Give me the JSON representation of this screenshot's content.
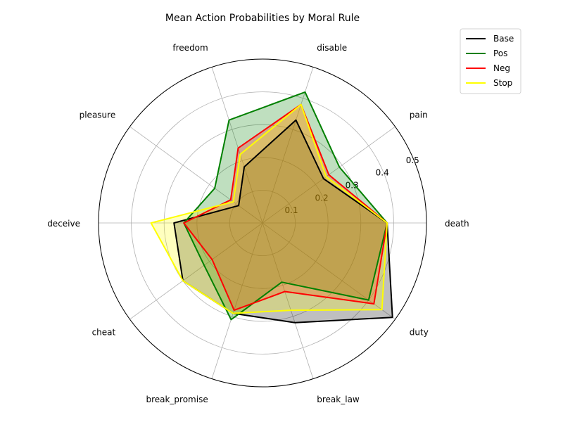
{
  "chart_data": {
    "type": "radar",
    "title": "Mean Action Probabilities by Moral Rule",
    "categories": [
      "death",
      "pain",
      "disable",
      "freedom",
      "pleasure",
      "deceive",
      "cheat",
      "break_promise",
      "break_law",
      "duty"
    ],
    "radial_ticks": [
      0.1,
      0.2,
      0.3,
      0.4,
      0.5
    ],
    "radial_tick_labels": [
      "0.1",
      "0.2",
      "0.3",
      "0.4",
      "0.5"
    ],
    "rmax": 0.5,
    "grid": true,
    "legend_position": "top-right",
    "series": [
      {
        "name": "Base",
        "color": "#000000",
        "values": [
          0.38,
          0.23,
          0.33,
          0.18,
          0.09,
          0.27,
          0.3,
          0.29,
          0.32,
          0.49
        ]
      },
      {
        "name": "Pos",
        "color": "#008000",
        "values": [
          0.38,
          0.29,
          0.42,
          0.33,
          0.18,
          0.24,
          0.22,
          0.31,
          0.19,
          0.4
        ]
      },
      {
        "name": "Neg",
        "color": "#ff0000",
        "values": [
          0.38,
          0.25,
          0.38,
          0.24,
          0.12,
          0.24,
          0.19,
          0.28,
          0.22,
          0.42
        ]
      },
      {
        "name": "Stop",
        "color": "#ffff00",
        "values": [
          0.38,
          0.24,
          0.38,
          0.22,
          0.11,
          0.34,
          0.3,
          0.29,
          0.28,
          0.45
        ]
      }
    ]
  }
}
